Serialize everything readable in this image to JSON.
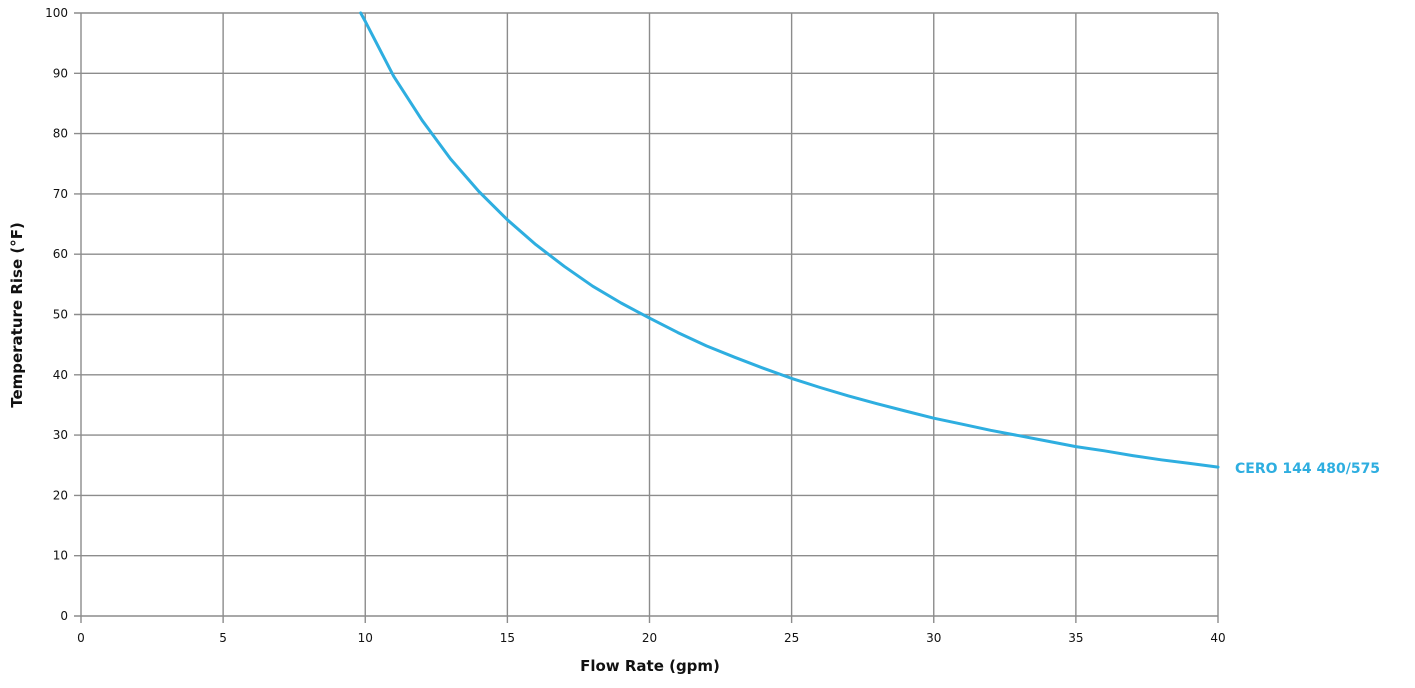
{
  "chart_data": {
    "type": "line",
    "title": "",
    "xlabel": "Flow Rate (gpm)",
    "ylabel": "Temperature Rise (°F)",
    "xlim": [
      0,
      40
    ],
    "ylim": [
      0,
      100
    ],
    "x_ticks": [
      0,
      5,
      10,
      15,
      20,
      25,
      30,
      35,
      40
    ],
    "y_ticks": [
      0,
      10,
      20,
      30,
      40,
      50,
      60,
      70,
      80,
      90,
      100
    ],
    "grid": true,
    "legend": "none",
    "series": [
      {
        "name": "CERO 144 480/575",
        "color": "#2eaee0",
        "x": [
          9.84,
          10,
          11,
          12,
          13,
          14,
          15,
          16,
          17,
          18,
          19,
          20,
          21,
          22,
          23,
          24,
          25,
          26,
          27,
          28,
          29,
          30,
          31,
          32,
          33,
          34,
          35,
          36,
          37,
          38,
          39,
          40
        ],
        "y": [
          100,
          98.6,
          89.5,
          82.2,
          75.8,
          70.4,
          65.7,
          61.6,
          58.0,
          54.7,
          51.9,
          49.4,
          47.0,
          44.8,
          42.9,
          41.1,
          39.4,
          37.9,
          36.5,
          35.2,
          34.0,
          32.8,
          31.8,
          30.8,
          29.9,
          29.0,
          28.1,
          27.4,
          26.6,
          25.9,
          25.3,
          24.7
        ]
      }
    ]
  }
}
